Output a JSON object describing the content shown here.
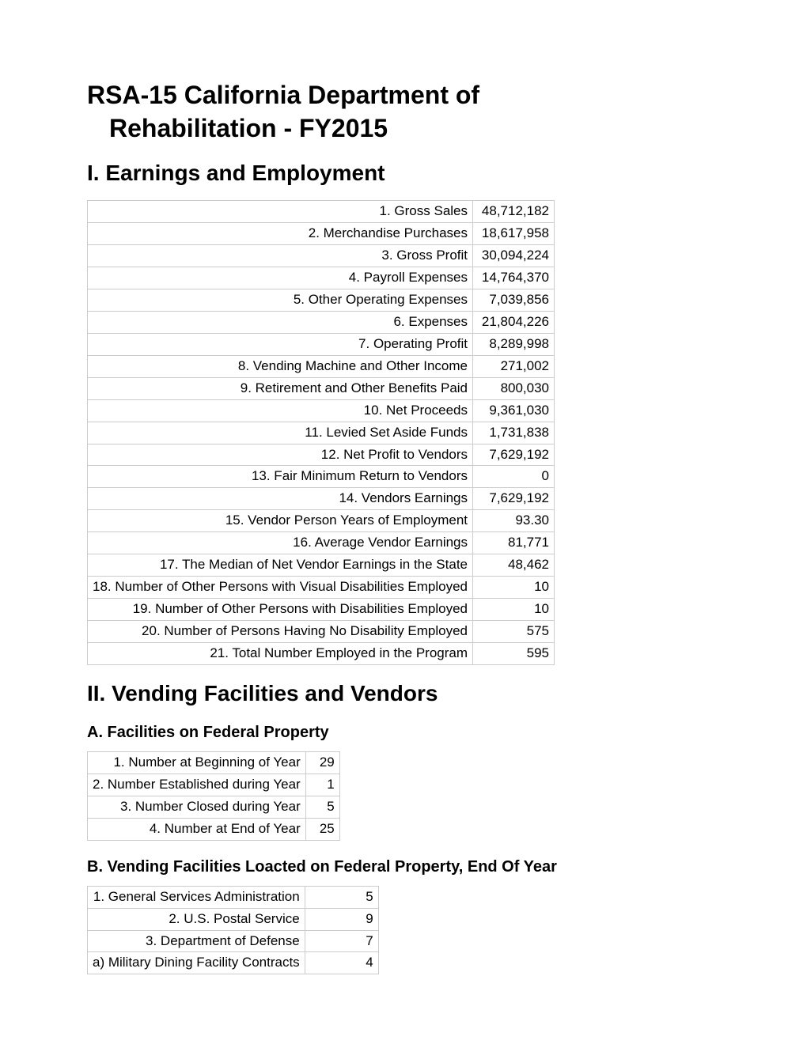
{
  "title_line1": "RSA-15 California Department of",
  "title_line2": "Rehabilitation - FY2015",
  "section1": {
    "heading": "I. Earnings and Employment",
    "rows": [
      {
        "label": "1. Gross Sales",
        "value": "48,712,182"
      },
      {
        "label": "2. Merchandise Purchases",
        "value": "18,617,958"
      },
      {
        "label": "3. Gross Profit",
        "value": "30,094,224"
      },
      {
        "label": "4. Payroll Expenses",
        "value": "14,764,370"
      },
      {
        "label": "5. Other Operating Expenses",
        "value": "7,039,856"
      },
      {
        "label": "6. Expenses",
        "value": "21,804,226"
      },
      {
        "label": "7. Operating Profit",
        "value": "8,289,998"
      },
      {
        "label": "8. Vending Machine and Other Income",
        "value": "271,002"
      },
      {
        "label": "9. Retirement and Other Benefits Paid",
        "value": "800,030"
      },
      {
        "label": "10. Net Proceeds",
        "value": "9,361,030"
      },
      {
        "label": "11. Levied Set Aside Funds",
        "value": "1,731,838"
      },
      {
        "label": "12. Net Profit to Vendors",
        "value": "7,629,192"
      },
      {
        "label": "13. Fair Minimum Return to Vendors",
        "value": "0"
      },
      {
        "label": "14. Vendors Earnings",
        "value": "7,629,192"
      },
      {
        "label": "15. Vendor Person Years of Employment",
        "value": "93.30"
      },
      {
        "label": "16. Average Vendor Earnings",
        "value": "81,771"
      },
      {
        "label": "17. The Median of Net Vendor Earnings in the State",
        "value": "48,462"
      },
      {
        "label": "18. Number of Other Persons with Visual Disabilities Employed",
        "value": "10"
      },
      {
        "label": "19. Number of Other Persons with Disabilities Employed",
        "value": "10"
      },
      {
        "label": "20. Number of Persons Having No Disability Employed",
        "value": "575"
      },
      {
        "label": "21. Total Number Employed in the Program",
        "value": "595"
      }
    ]
  },
  "section2": {
    "heading": "II. Vending Facilities and Vendors",
    "subA": {
      "heading": "A. Facilities on Federal Property",
      "rows": [
        {
          "label": "1. Number at Beginning of Year",
          "value": "29"
        },
        {
          "label": "2. Number Established during Year",
          "value": "1"
        },
        {
          "label": "3. Number Closed during Year",
          "value": "5"
        },
        {
          "label": "4. Number at End of Year",
          "value": "25"
        }
      ]
    },
    "subB": {
      "heading": "B. Vending Facilities Loacted on Federal Property, End Of Year",
      "rows": [
        {
          "label": "1. General Services Administration",
          "value": "5"
        },
        {
          "label": "2. U.S. Postal Service",
          "value": "9"
        },
        {
          "label": "3. Department of Defense",
          "value": "7"
        },
        {
          "label": "a) Military Dining Facility Contracts",
          "value": "4"
        }
      ]
    }
  }
}
